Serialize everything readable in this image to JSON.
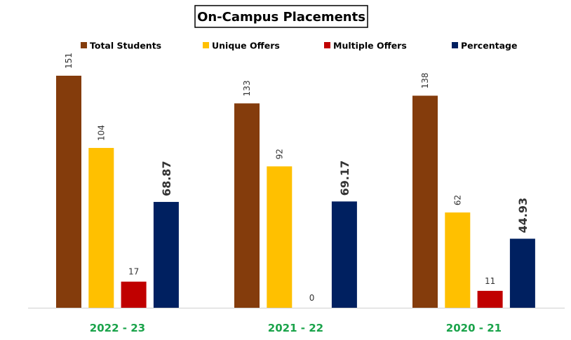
{
  "chart_data": {
    "type": "bar",
    "title": "On-Campus Placements",
    "categories": [
      "2022 - 23",
      "2021 - 22",
      "2020 - 21"
    ],
    "series": [
      {
        "name": "Total Students",
        "color": "#843c0c",
        "values": [
          151,
          133,
          138
        ],
        "labels": [
          "151",
          "133",
          "138"
        ]
      },
      {
        "name": "Unique Offers",
        "color": "#ffc000",
        "values": [
          104,
          92,
          62
        ],
        "labels": [
          "104",
          "92",
          "62"
        ]
      },
      {
        "name": "Multiple Offers",
        "color": "#c00000",
        "values": [
          17,
          0,
          11
        ],
        "labels": [
          "17",
          "0",
          "11"
        ]
      },
      {
        "name": "Percentage",
        "color": "#002060",
        "values": [
          68.87,
          69.17,
          44.93
        ],
        "labels": [
          "68.87",
          "69.17",
          "44.93"
        ]
      }
    ],
    "xlabel": "",
    "ylabel": "",
    "ylim": [
      0,
      165
    ],
    "grid": false,
    "legend": "top",
    "category_label_color": "#1aa34a"
  }
}
